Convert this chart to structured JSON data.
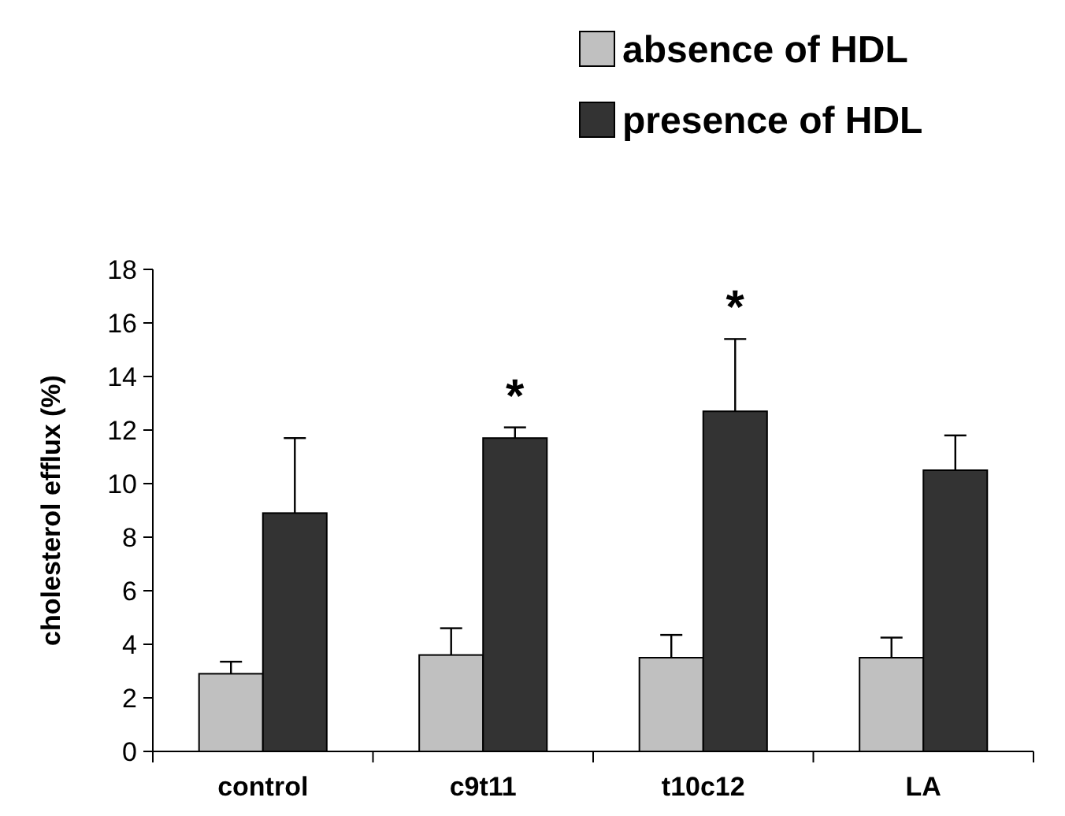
{
  "chart_data": {
    "type": "bar",
    "ylabel": "cholesterol efflux (%)",
    "categories": [
      "control",
      "c9t11",
      "t10c12",
      "LA"
    ],
    "series": [
      {
        "name": "absence of HDL",
        "color": "#c0c0c0",
        "values": [
          2.9,
          3.6,
          3.5,
          3.5
        ],
        "errors": [
          [
            2.9,
            3.35
          ],
          [
            3.6,
            4.6
          ],
          [
            3.5,
            4.35
          ],
          [
            3.5,
            4.25
          ]
        ]
      },
      {
        "name": "presence of HDL",
        "color": "#333333",
        "values": [
          8.9,
          11.7,
          12.7,
          10.5
        ],
        "errors": [
          [
            8.9,
            11.7
          ],
          [
            11.7,
            12.1
          ],
          [
            12.7,
            15.4
          ],
          [
            10.5,
            11.8
          ]
        ]
      }
    ],
    "ylim": [
      0,
      18
    ],
    "yticks": [
      0,
      2,
      4,
      6,
      8,
      10,
      12,
      14,
      16,
      18
    ],
    "grid": false,
    "legend": "top right",
    "annotations": [
      "*",
      "*"
    ]
  }
}
